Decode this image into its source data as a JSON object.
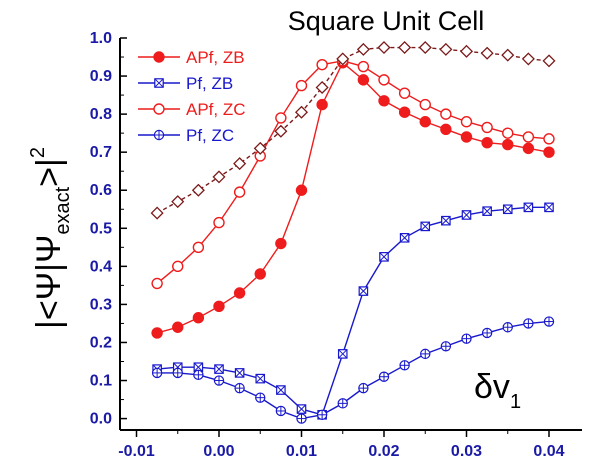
{
  "chart_data": {
    "type": "line",
    "title": "Square Unit Cell",
    "xlabel": "δv",
    "xlabel_sub": "1",
    "ylabel_left": "|<Ψ|Ψ",
    "ylabel_sub": "exact",
    "ylabel_right": ">|",
    "ylabel_sup": "2",
    "xlim": [
      -0.012,
      0.044
    ],
    "ylim": [
      -0.03,
      1.0
    ],
    "x_ticks": [
      -0.01,
      0.0,
      0.01,
      0.02,
      0.03,
      0.04
    ],
    "x_tick_labels": [
      "-0.01",
      "0.00",
      "0.01",
      "0.02",
      "0.03",
      "0.04"
    ],
    "y_ticks": [
      0.0,
      0.1,
      0.2,
      0.3,
      0.4,
      0.5,
      0.6,
      0.7,
      0.8,
      0.9,
      1.0
    ],
    "y_tick_labels": [
      "0.0",
      "0.1",
      "0.2",
      "0.3",
      "0.4",
      "0.5",
      "0.6",
      "0.7",
      "0.8",
      "0.9",
      "1.0"
    ],
    "grid": false,
    "legend_position": "top-left",
    "series": [
      {
        "name": "APf, ZB",
        "color": "#ee1c1c",
        "marker": "filled-circle",
        "x": [
          -0.0075,
          -0.005,
          -0.0025,
          0.0,
          0.0025,
          0.005,
          0.0075,
          0.01,
          0.0125,
          0.015,
          0.0175,
          0.02,
          0.0225,
          0.025,
          0.0275,
          0.03,
          0.0325,
          0.035,
          0.0375,
          0.04
        ],
        "values": [
          0.225,
          0.24,
          0.265,
          0.295,
          0.33,
          0.38,
          0.46,
          0.6,
          0.825,
          0.935,
          0.89,
          0.835,
          0.805,
          0.78,
          0.76,
          0.74,
          0.725,
          0.72,
          0.71,
          0.7
        ]
      },
      {
        "name": "Pf, ZB",
        "color": "#1818cc",
        "marker": "boxed-x",
        "x": [
          -0.0075,
          -0.005,
          -0.0025,
          0.0,
          0.0025,
          0.005,
          0.0075,
          0.01,
          0.0125,
          0.015,
          0.0175,
          0.02,
          0.0225,
          0.025,
          0.0275,
          0.03,
          0.0325,
          0.035,
          0.0375,
          0.04
        ],
        "values": [
          0.13,
          0.135,
          0.135,
          0.13,
          0.12,
          0.105,
          0.075,
          0.025,
          0.01,
          0.17,
          0.335,
          0.425,
          0.475,
          0.505,
          0.52,
          0.535,
          0.545,
          0.55,
          0.555,
          0.555
        ]
      },
      {
        "name": "APf, ZC",
        "color": "#ee1c1c",
        "marker": "open-circle",
        "x": [
          -0.0075,
          -0.005,
          -0.0025,
          0.0,
          0.0025,
          0.005,
          0.0075,
          0.01,
          0.0125,
          0.015,
          0.0175,
          0.02,
          0.0225,
          0.025,
          0.0275,
          0.03,
          0.0325,
          0.035,
          0.0375,
          0.04
        ],
        "values": [
          0.355,
          0.4,
          0.45,
          0.515,
          0.595,
          0.69,
          0.79,
          0.875,
          0.93,
          0.94,
          0.925,
          0.89,
          0.855,
          0.825,
          0.8,
          0.78,
          0.765,
          0.75,
          0.74,
          0.735
        ]
      },
      {
        "name": "Pf, ZC",
        "color": "#1818cc",
        "marker": "circle-plus",
        "x": [
          -0.0075,
          -0.005,
          -0.0025,
          0.0,
          0.0025,
          0.005,
          0.0075,
          0.01,
          0.0125,
          0.015,
          0.0175,
          0.02,
          0.0225,
          0.025,
          0.0275,
          0.03,
          0.0325,
          0.035,
          0.0375,
          0.04
        ],
        "values": [
          0.12,
          0.12,
          0.115,
          0.1,
          0.08,
          0.055,
          0.02,
          0.0,
          0.01,
          0.04,
          0.08,
          0.11,
          0.14,
          0.17,
          0.19,
          0.21,
          0.225,
          0.24,
          0.25,
          0.255
        ]
      },
      {
        "color": "#7a1a1a",
        "marker": "open-diamond",
        "x": [
          -0.0075,
          -0.005,
          -0.0025,
          0.0,
          0.0025,
          0.005,
          0.0075,
          0.01,
          0.0125,
          0.015,
          0.0175,
          0.02,
          0.0225,
          0.025,
          0.0275,
          0.03,
          0.0325,
          0.035,
          0.0375,
          0.04
        ],
        "values": [
          0.54,
          0.57,
          0.6,
          0.635,
          0.67,
          0.71,
          0.755,
          0.805,
          0.87,
          0.945,
          0.97,
          0.975,
          0.975,
          0.975,
          0.97,
          0.965,
          0.96,
          0.955,
          0.945,
          0.94
        ]
      }
    ]
  }
}
